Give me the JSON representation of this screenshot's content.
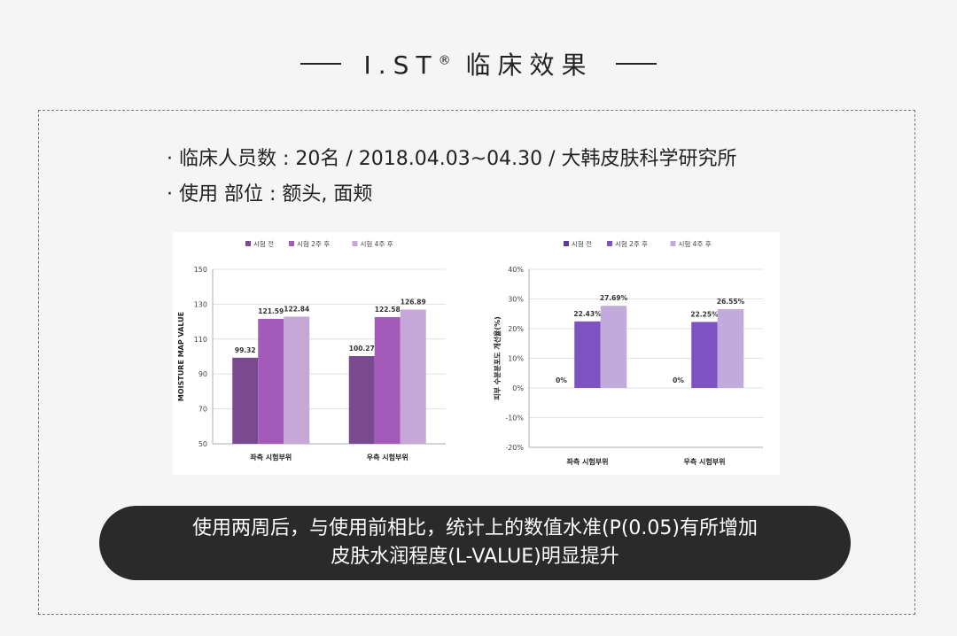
{
  "header": {
    "title": "I.ST",
    "mark": "®",
    "title_cn": "临床效果"
  },
  "info": {
    "line1": "· 临床人员数 : 20名 / 2018.04.03~04.30 / 大韩皮肤科学研究所",
    "line2": "· 使用  部位 : 额头, 面颊"
  },
  "chart_data": [
    {
      "type": "bar",
      "categories": [
        "좌측 시험부위",
        "우측 시험부위"
      ],
      "series": [
        {
          "name": "시험 전",
          "values": [
            99.32,
            100.27
          ],
          "labels": [
            "99.32",
            "100.27"
          ],
          "color": "#7a4a90"
        },
        {
          "name": "시험 2주 후",
          "values": [
            121.59,
            122.58
          ],
          "labels": [
            "121.59",
            "122.58"
          ],
          "color": "#a35ab8"
        },
        {
          "name": "시험 4주 후",
          "values": [
            122.84,
            126.89
          ],
          "labels": [
            "122.84",
            "126.89"
          ],
          "color": "#c7a6d8"
        }
      ],
      "ylabel": "MOISTURE MAP VALUE",
      "ylim": [
        50,
        150
      ],
      "yticks": [
        "50",
        "70",
        "90",
        "110",
        "130",
        "150"
      ],
      "yticks_values": [
        50,
        70,
        90,
        110,
        130,
        150
      ],
      "grid": true,
      "legend": "top"
    },
    {
      "type": "bar",
      "categories": [
        "좌측 시험부위",
        "우측 시험부위"
      ],
      "series": [
        {
          "name": "시험 전",
          "values": [
            0,
            0
          ],
          "labels": [
            "0%",
            "0%"
          ],
          "color": "#5c3c98"
        },
        {
          "name": "시험 2주 후",
          "values": [
            22.43,
            22.25
          ],
          "labels": [
            "22.43%",
            "22.25%"
          ],
          "color": "#7e52c0"
        },
        {
          "name": "시험 4주 후",
          "values": [
            27.69,
            26.55
          ],
          "labels": [
            "27.69%",
            "26.55%"
          ],
          "color": "#c0abdc"
        }
      ],
      "ylabel": "피부 수분분포도 개선율(%)",
      "ylim": [
        -20,
        40
      ],
      "yticks": [
        "-20%",
        "-10%",
        "0%",
        "10%",
        "20%",
        "30%",
        "40%"
      ],
      "yticks_values": [
        -20,
        -10,
        0,
        10,
        20,
        30,
        40
      ],
      "grid": true,
      "legend": "top"
    }
  ],
  "conclusion": {
    "line1": "使用两周后，与使用前相比，统计上的数值水准(P(0.05)有所增加",
    "line2": "皮肤水润程度(L-VALUE)明显提升"
  }
}
